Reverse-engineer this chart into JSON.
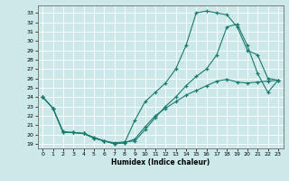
{
  "xlabel": "Humidex (Indice chaleur)",
  "bg_color": "#cce8e8",
  "grid_color": "#ffffff",
  "line_color": "#1a7a6e",
  "xlim": [
    -0.5,
    23.5
  ],
  "ylim": [
    18.5,
    33.8
  ],
  "xticks": [
    0,
    1,
    2,
    3,
    4,
    5,
    6,
    7,
    8,
    9,
    10,
    11,
    12,
    13,
    14,
    15,
    16,
    17,
    18,
    19,
    20,
    21,
    22,
    23
  ],
  "yticks": [
    19,
    20,
    21,
    22,
    23,
    24,
    25,
    26,
    27,
    28,
    29,
    30,
    31,
    32,
    33
  ],
  "line1_x": [
    0,
    1,
    2,
    3,
    4,
    5,
    6,
    7,
    8,
    9,
    10,
    11,
    12,
    13,
    14,
    15,
    16,
    17,
    18,
    19,
    20,
    21,
    22,
    23
  ],
  "line1_y": [
    24.0,
    22.8,
    20.2,
    20.2,
    20.1,
    19.6,
    19.3,
    19.0,
    19.1,
    21.5,
    23.5,
    24.5,
    25.5,
    27.0,
    29.5,
    33.0,
    33.2,
    33.0,
    32.8,
    31.5,
    29.0,
    28.5,
    26.0,
    25.8
  ],
  "line2_x": [
    0,
    1,
    2,
    3,
    4,
    5,
    6,
    7,
    8,
    9,
    10,
    11,
    12,
    13,
    14,
    15,
    16,
    17,
    18,
    19,
    20,
    21,
    22,
    23
  ],
  "line2_y": [
    24.0,
    22.8,
    20.3,
    20.2,
    20.1,
    19.7,
    19.3,
    19.1,
    19.2,
    19.3,
    20.5,
    21.8,
    23.0,
    24.0,
    25.2,
    26.2,
    27.0,
    28.5,
    31.5,
    31.8,
    29.5,
    26.5,
    24.5,
    25.8
  ],
  "line3_x": [
    0,
    1,
    2,
    3,
    4,
    5,
    6,
    7,
    8,
    9,
    10,
    11,
    12,
    13,
    14,
    15,
    16,
    17,
    18,
    19,
    20,
    21,
    22,
    23
  ],
  "line3_y": [
    24.0,
    22.8,
    20.2,
    20.2,
    20.1,
    19.6,
    19.3,
    19.0,
    19.1,
    19.5,
    20.8,
    22.0,
    22.8,
    23.5,
    24.2,
    24.7,
    25.2,
    25.7,
    25.9,
    25.6,
    25.5,
    25.6,
    25.7,
    25.8
  ]
}
